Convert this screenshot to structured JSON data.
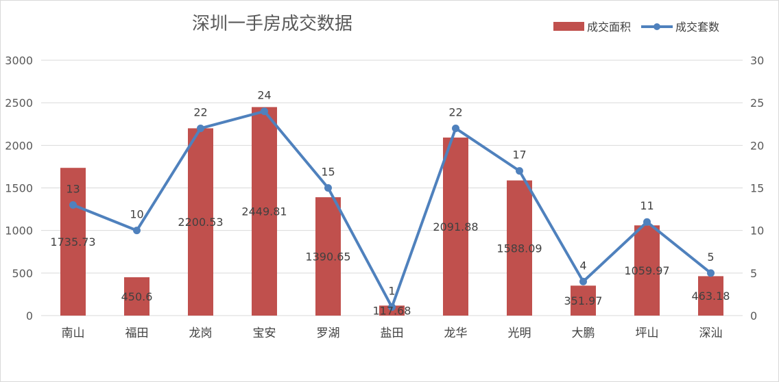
{
  "chart_data": {
    "type": "bar",
    "title": "深圳一手房成交数据",
    "categories": [
      "南山",
      "福田",
      "龙岗",
      "宝安",
      "罗湖",
      "盐田",
      "龙华",
      "光明",
      "大鹏",
      "坪山",
      "深汕"
    ],
    "series": [
      {
        "name": "成交面积",
        "type": "bar",
        "axis": "left",
        "color": "#c0504d",
        "values": [
          1735.73,
          450.6,
          2200.53,
          2449.81,
          1390.65,
          117.68,
          2091.88,
          1588.09,
          351.97,
          1059.97,
          463.18
        ],
        "labels": [
          "1735.73",
          "450.6",
          "2200.53",
          "2449.81",
          "1390.65",
          "117.68",
          "2091.88",
          "1588.09",
          "351.97",
          "1059.97",
          "463.18"
        ]
      },
      {
        "name": "成交套数",
        "type": "line",
        "axis": "right",
        "color": "#4f81bd",
        "values": [
          13,
          10,
          22,
          24,
          15,
          1,
          22,
          17,
          4,
          11,
          5
        ],
        "labels": [
          "13",
          "10",
          "22",
          "24",
          "15",
          "1",
          "22",
          "17",
          "4",
          "11",
          "5"
        ]
      }
    ],
    "y_left": {
      "min": 0,
      "max": 3000,
      "ticks": [
        "0",
        "500",
        "1000",
        "1500",
        "2000",
        "2500",
        "3000"
      ]
    },
    "y_right": {
      "min": 0,
      "max": 30,
      "ticks": [
        "0",
        "5",
        "10",
        "15",
        "20",
        "25",
        "30"
      ]
    },
    "grid": true,
    "legend_position": "top-right",
    "gridline_color": "#d9d9d9"
  }
}
